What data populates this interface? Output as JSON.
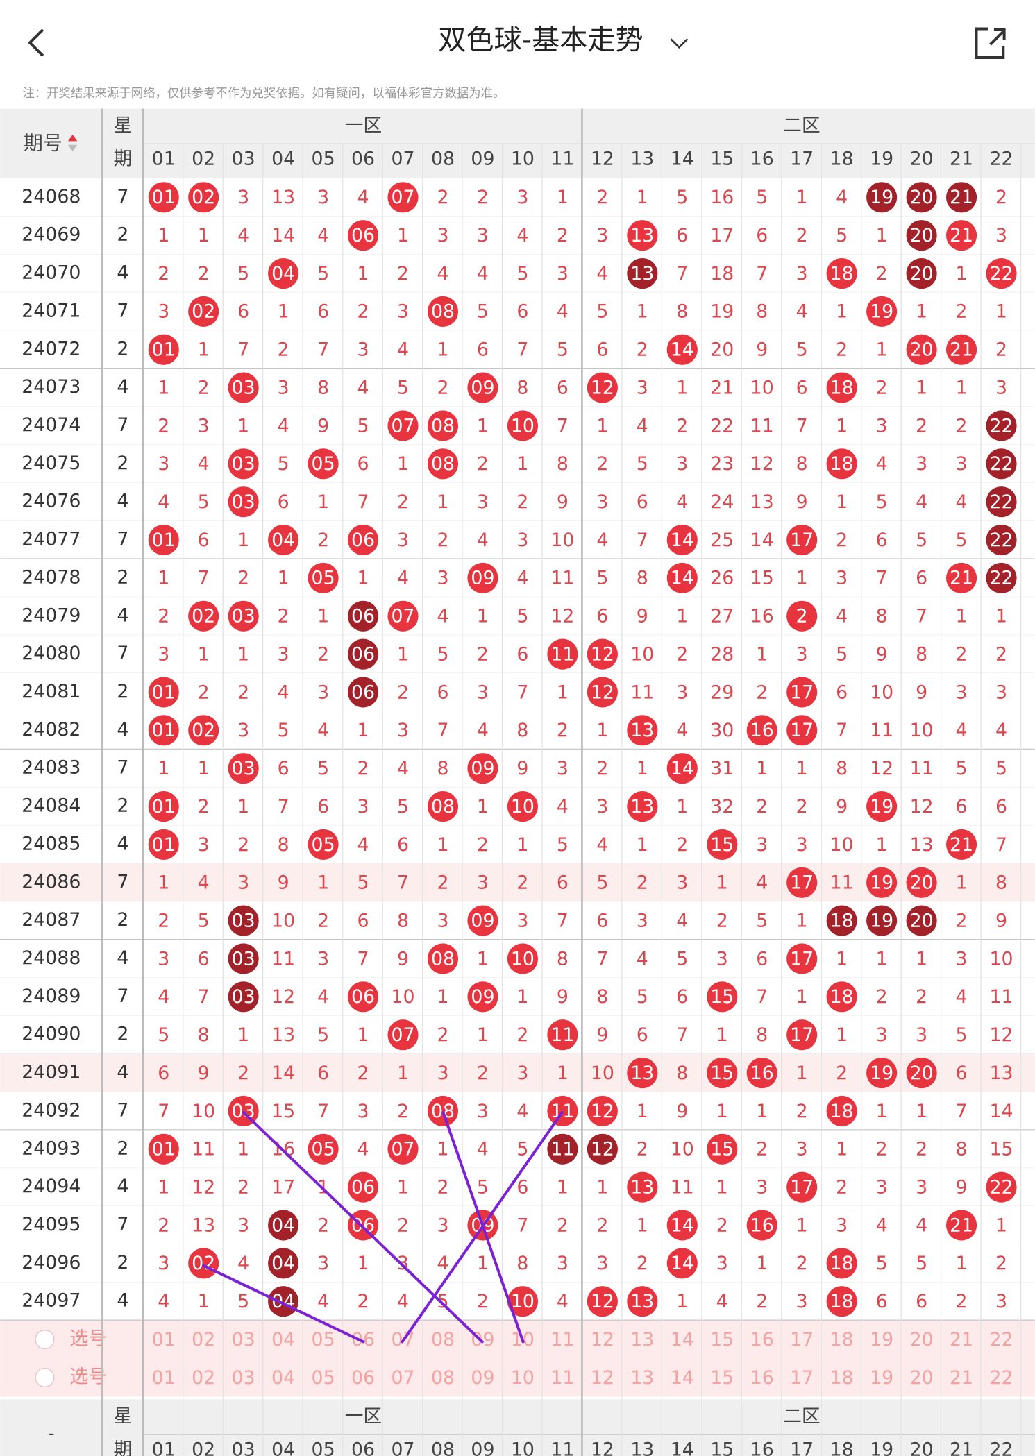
{
  "header": {
    "title": "双色球-基本走势",
    "note": "注：开奖结果来源于网络，仅供参考不作为兑奖依据。如有疑问，以福体彩官方数据为准。"
  },
  "table": {
    "period_header": "期号",
    "weekday_header": [
      "星",
      "期"
    ],
    "zone1": "一区",
    "zone2": "二区",
    "columns": [
      "01",
      "02",
      "03",
      "04",
      "05",
      "06",
      "07",
      "08",
      "09",
      "10",
      "11",
      "12",
      "13",
      "14",
      "15",
      "16",
      "17",
      "18",
      "19",
      "20",
      "21",
      "22"
    ],
    "rows": [
      {
        "period": "24068",
        "weekday": "7",
        "cells": [
          "01",
          "02",
          "3",
          "13",
          "3",
          "4",
          "07",
          "2",
          "2",
          "3",
          "1",
          "2",
          "1",
          "5",
          "16",
          "5",
          "1",
          "4",
          "19",
          "20",
          "21",
          "2"
        ],
        "balls": "rr....r...........ddd."
      },
      {
        "period": "24069",
        "weekday": "2",
        "cells": [
          "1",
          "1",
          "4",
          "14",
          "4",
          "06",
          "1",
          "3",
          "3",
          "4",
          "2",
          "3",
          "13",
          "6",
          "17",
          "6",
          "2",
          "5",
          "1",
          "20",
          "21",
          "3"
        ],
        "balls": ".....r......r......dr."
      },
      {
        "period": "24070",
        "weekday": "4",
        "cells": [
          "2",
          "2",
          "5",
          "04",
          "5",
          "1",
          "2",
          "4",
          "4",
          "5",
          "3",
          "4",
          "13",
          "7",
          "18",
          "7",
          "3",
          "18",
          "2",
          "20",
          "1",
          "22"
        ],
        "balls": "...r........d....r.d.r"
      },
      {
        "period": "24071",
        "weekday": "7",
        "cells": [
          "3",
          "02",
          "6",
          "1",
          "6",
          "2",
          "3",
          "08",
          "5",
          "6",
          "4",
          "5",
          "1",
          "8",
          "19",
          "8",
          "4",
          "1",
          "19",
          "1",
          "2",
          "1"
        ],
        "balls": ".r.....r..........r..."
      },
      {
        "period": "24072",
        "weekday": "2",
        "cells": [
          "01",
          "1",
          "7",
          "2",
          "7",
          "3",
          "4",
          "1",
          "6",
          "7",
          "5",
          "6",
          "2",
          "14",
          "20",
          "9",
          "5",
          "2",
          "1",
          "20",
          "21",
          "2"
        ],
        "balls": "r............r.....rr."
      },
      {
        "period": "24073",
        "weekday": "4",
        "cells": [
          "1",
          "2",
          "03",
          "3",
          "8",
          "4",
          "5",
          "2",
          "09",
          "8",
          "6",
          "12",
          "3",
          "1",
          "21",
          "10",
          "6",
          "18",
          "2",
          "1",
          "1",
          "3"
        ],
        "balls": "..r.....r..r.....r...."
      },
      {
        "period": "24074",
        "weekday": "7",
        "cells": [
          "2",
          "3",
          "1",
          "4",
          "9",
          "5",
          "07",
          "08",
          "1",
          "10",
          "7",
          "1",
          "4",
          "2",
          "22",
          "11",
          "7",
          "1",
          "3",
          "2",
          "2",
          "22"
        ],
        "balls": "......rr.r...........d"
      },
      {
        "period": "24075",
        "weekday": "2",
        "cells": [
          "3",
          "4",
          "03",
          "5",
          "05",
          "6",
          "1",
          "08",
          "2",
          "1",
          "8",
          "2",
          "5",
          "3",
          "23",
          "12",
          "8",
          "18",
          "4",
          "3",
          "3",
          "22"
        ],
        "balls": "..r.r..r.........r...d"
      },
      {
        "period": "24076",
        "weekday": "4",
        "cells": [
          "4",
          "5",
          "03",
          "6",
          "1",
          "7",
          "2",
          "1",
          "3",
          "2",
          "9",
          "3",
          "6",
          "4",
          "24",
          "13",
          "9",
          "1",
          "5",
          "4",
          "4",
          "22"
        ],
        "balls": "..r..................d"
      },
      {
        "period": "24077",
        "weekday": "7",
        "cells": [
          "01",
          "6",
          "1",
          "04",
          "2",
          "06",
          "3",
          "2",
          "4",
          "3",
          "10",
          "4",
          "7",
          "14",
          "25",
          "14",
          "17",
          "2",
          "6",
          "5",
          "5",
          "22"
        ],
        "balls": "r..r.r.......r..r....d"
      },
      {
        "period": "24078",
        "weekday": "2",
        "cells": [
          "1",
          "7",
          "2",
          "1",
          "05",
          "1",
          "4",
          "3",
          "09",
          "4",
          "11",
          "5",
          "8",
          "14",
          "26",
          "15",
          "1",
          "3",
          "7",
          "6",
          "21",
          "22"
        ],
        "balls": "....r...r....r......rd"
      },
      {
        "period": "24079",
        "weekday": "4",
        "cells": [
          "2",
          "02",
          "03",
          "2",
          "1",
          "06",
          "07",
          "4",
          "1",
          "5",
          "12",
          "6",
          "9",
          "1",
          "27",
          "16",
          "2",
          "4",
          "8",
          "7",
          "1",
          "1"
        ],
        "balls": ".rr..dr.........r....."
      },
      {
        "period": "24080",
        "weekday": "7",
        "cells": [
          "3",
          "1",
          "1",
          "3",
          "2",
          "06",
          "1",
          "5",
          "2",
          "6",
          "11",
          "12",
          "10",
          "2",
          "28",
          "1",
          "3",
          "5",
          "9",
          "8",
          "2",
          "2"
        ],
        "balls": ".....d....rr.........."
      },
      {
        "period": "24081",
        "weekday": "2",
        "cells": [
          "01",
          "2",
          "2",
          "4",
          "3",
          "06",
          "2",
          "6",
          "3",
          "7",
          "1",
          "12",
          "11",
          "3",
          "29",
          "2",
          "17",
          "6",
          "10",
          "9",
          "3",
          "3"
        ],
        "balls": "r....d.....r....r....."
      },
      {
        "period": "24082",
        "weekday": "4",
        "cells": [
          "01",
          "02",
          "3",
          "5",
          "4",
          "1",
          "3",
          "7",
          "4",
          "8",
          "2",
          "1",
          "13",
          "4",
          "30",
          "16",
          "17",
          "7",
          "11",
          "10",
          "4",
          "4"
        ],
        "balls": "rr..........r..rr....."
      },
      {
        "period": "24083",
        "weekday": "7",
        "cells": [
          "1",
          "1",
          "03",
          "6",
          "5",
          "2",
          "4",
          "8",
          "09",
          "9",
          "3",
          "2",
          "1",
          "14",
          "31",
          "1",
          "1",
          "8",
          "12",
          "11",
          "5",
          "5"
        ],
        "balls": "..r.....r....r........"
      },
      {
        "period": "24084",
        "weekday": "2",
        "cells": [
          "01",
          "2",
          "1",
          "7",
          "6",
          "3",
          "5",
          "08",
          "1",
          "10",
          "4",
          "3",
          "13",
          "1",
          "32",
          "2",
          "2",
          "9",
          "19",
          "12",
          "6",
          "6"
        ],
        "balls": "r......r.r..r.....r..."
      },
      {
        "period": "24085",
        "weekday": "4",
        "cells": [
          "01",
          "3",
          "2",
          "8",
          "05",
          "4",
          "6",
          "1",
          "2",
          "1",
          "5",
          "4",
          "1",
          "2",
          "15",
          "3",
          "3",
          "10",
          "1",
          "13",
          "21",
          "7"
        ],
        "balls": "r...r.........r.....r."
      },
      {
        "period": "24086",
        "weekday": "7",
        "highlight": true,
        "cells": [
          "1",
          "4",
          "3",
          "9",
          "1",
          "5",
          "7",
          "2",
          "3",
          "2",
          "6",
          "5",
          "2",
          "3",
          "1",
          "4",
          "17",
          "11",
          "19",
          "20",
          "1",
          "8"
        ],
        "balls": "................r.rr.."
      },
      {
        "period": "24087",
        "weekday": "2",
        "cells": [
          "2",
          "5",
          "03",
          "10",
          "2",
          "6",
          "8",
          "3",
          "09",
          "3",
          "7",
          "6",
          "3",
          "4",
          "2",
          "5",
          "1",
          "18",
          "19",
          "20",
          "2",
          "9"
        ],
        "balls": "..d.....r........ddd.."
      },
      {
        "period": "24088",
        "weekday": "4",
        "cells": [
          "3",
          "6",
          "03",
          "11",
          "3",
          "7",
          "9",
          "08",
          "1",
          "10",
          "8",
          "7",
          "4",
          "5",
          "3",
          "6",
          "17",
          "1",
          "1",
          "1",
          "3",
          "10"
        ],
        "balls": "..d....r.r......r....."
      },
      {
        "period": "24089",
        "weekday": "7",
        "cells": [
          "4",
          "7",
          "03",
          "12",
          "4",
          "06",
          "10",
          "1",
          "09",
          "1",
          "9",
          "8",
          "5",
          "6",
          "15",
          "7",
          "1",
          "18",
          "2",
          "2",
          "4",
          "11"
        ],
        "balls": "..d..r..r.....r..r...."
      },
      {
        "period": "24090",
        "weekday": "2",
        "cells": [
          "5",
          "8",
          "1",
          "13",
          "5",
          "1",
          "07",
          "2",
          "1",
          "2",
          "11",
          "9",
          "6",
          "7",
          "1",
          "8",
          "17",
          "1",
          "3",
          "3",
          "5",
          "12"
        ],
        "balls": "......r...r.....r....."
      },
      {
        "period": "24091",
        "weekday": "4",
        "highlight": true,
        "cells": [
          "6",
          "9",
          "2",
          "14",
          "6",
          "2",
          "1",
          "3",
          "2",
          "3",
          "1",
          "10",
          "13",
          "8",
          "15",
          "16",
          "1",
          "2",
          "19",
          "20",
          "6",
          "13"
        ],
        "balls": "............r.rr..rr.."
      },
      {
        "period": "24092",
        "weekday": "7",
        "cells": [
          "7",
          "10",
          "03",
          "15",
          "7",
          "3",
          "2",
          "08",
          "3",
          "4",
          "11",
          "12",
          "1",
          "9",
          "1",
          "1",
          "2",
          "18",
          "1",
          "1",
          "7",
          "14"
        ],
        "balls": "..r....r..rr.....r...."
      },
      {
        "period": "24093",
        "weekday": "2",
        "cells": [
          "01",
          "11",
          "1",
          "16",
          "05",
          "4",
          "07",
          "1",
          "4",
          "5",
          "11",
          "12",
          "2",
          "10",
          "15",
          "2",
          "3",
          "1",
          "2",
          "2",
          "8",
          "15"
        ],
        "balls": "r...r.r...dd..r......."
      },
      {
        "period": "24094",
        "weekday": "4",
        "cells": [
          "1",
          "12",
          "2",
          "17",
          "1",
          "06",
          "1",
          "2",
          "5",
          "6",
          "1",
          "1",
          "13",
          "11",
          "1",
          "3",
          "17",
          "2",
          "3",
          "3",
          "9",
          "22"
        ],
        "balls": ".....r......r...r....r"
      },
      {
        "period": "24095",
        "weekday": "7",
        "cells": [
          "2",
          "13",
          "3",
          "04",
          "2",
          "06",
          "2",
          "3",
          "09",
          "7",
          "2",
          "2",
          "1",
          "14",
          "2",
          "16",
          "1",
          "3",
          "4",
          "4",
          "21",
          "1"
        ],
        "balls": "...d.r..r....r.r....r."
      },
      {
        "period": "24096",
        "weekday": "2",
        "cells": [
          "3",
          "02",
          "4",
          "04",
          "3",
          "1",
          "3",
          "4",
          "1",
          "8",
          "3",
          "3",
          "2",
          "14",
          "3",
          "1",
          "2",
          "18",
          "5",
          "5",
          "1",
          "2"
        ],
        "balls": ".r.d.........r...r...."
      },
      {
        "period": "24097",
        "weekday": "4",
        "cells": [
          "4",
          "1",
          "5",
          "04",
          "4",
          "2",
          "4",
          "5",
          "2",
          "10",
          "4",
          "12",
          "13",
          "1",
          "4",
          "2",
          "3",
          "18",
          "6",
          "6",
          "2",
          "3"
        ],
        "balls": "...d.....r.rr....r...."
      }
    ],
    "select_label": "选号",
    "footer_period": "-"
  }
}
